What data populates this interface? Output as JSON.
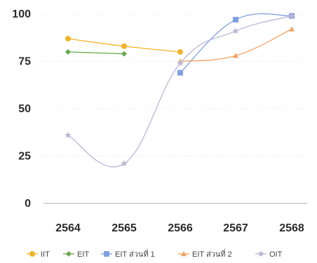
{
  "chart_data": {
    "type": "line",
    "title": "",
    "xlabel": "",
    "ylabel": "",
    "categories": [
      "2564",
      "2565",
      "2566",
      "2567",
      "2568"
    ],
    "ylim": [
      0,
      100
    ],
    "yticks": [
      0,
      25,
      50,
      75,
      100
    ],
    "grid": true,
    "legend_position": "bottom",
    "series": [
      {
        "name": "IIT",
        "color": "#f0b429",
        "marker": "circle",
        "values": [
          87,
          83,
          80,
          null,
          null
        ]
      },
      {
        "name": "EIT",
        "color": "#6aa84f",
        "marker": "diamond",
        "values": [
          80,
          79,
          null,
          null,
          null
        ]
      },
      {
        "name": "EIT ส่วนที่ 1",
        "color": "#7f9fe0",
        "marker": "square",
        "values": [
          null,
          null,
          69,
          97,
          99
        ]
      },
      {
        "name": "EIT ส่วนที่ 2",
        "color": "#f4a261",
        "marker": "triangle",
        "values": [
          null,
          null,
          75,
          78,
          92
        ]
      },
      {
        "name": "OIT",
        "color": "#b8b8d6",
        "marker": "star",
        "values": [
          36,
          21,
          74,
          91,
          99
        ]
      }
    ]
  }
}
